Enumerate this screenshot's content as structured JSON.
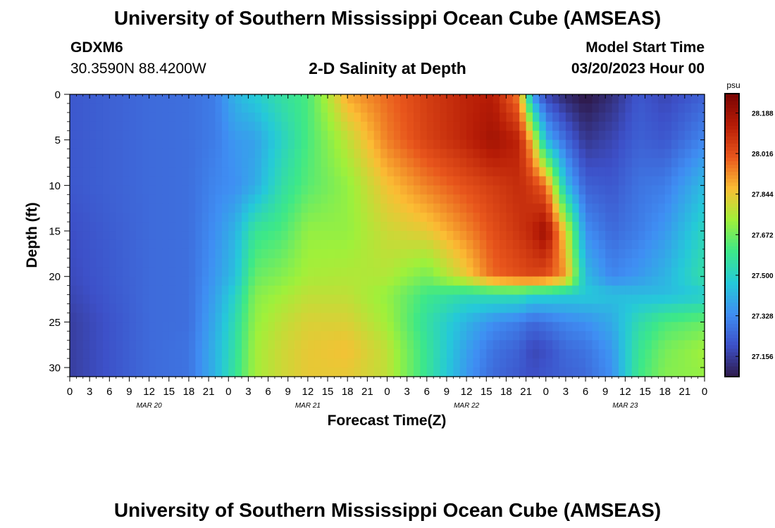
{
  "header": {
    "title": "University of Southern Mississippi Ocean Cube (AMSEAS)",
    "station_id": "GDXM6",
    "station_coords": "30.3590N  88.4200W",
    "plot_title": "2-D Salinity at Depth",
    "model_start_label": "Model Start Time",
    "model_start_value": "03/20/2023 Hour 00"
  },
  "footer": {
    "title": "University of Southern Mississippi Ocean Cube (AMSEAS)"
  },
  "chart_data": {
    "type": "heatmap",
    "xlabel": "Forecast Time(Z)",
    "ylabel": "Depth (ft)",
    "x_unit": "hours",
    "x_range": [
      0,
      96
    ],
    "y_range": [
      0,
      31
    ],
    "y_reversed": true,
    "x_tick_step_hours": 3,
    "x_tick_labels": [
      "0",
      "3",
      "6",
      "9",
      "12",
      "15",
      "18",
      "21",
      "0",
      "3",
      "6",
      "9",
      "12",
      "15",
      "18",
      "21",
      "0",
      "3",
      "6",
      "9",
      "12",
      "15",
      "18",
      "21",
      "0",
      "3",
      "6",
      "9",
      "12",
      "15",
      "18",
      "21",
      "0"
    ],
    "date_labels": [
      {
        "label": "MAR 20",
        "hour": 12
      },
      {
        "label": "MAR 21",
        "hour": 36
      },
      {
        "label": "MAR 22",
        "hour": 60
      },
      {
        "label": "MAR 23",
        "hour": 84
      }
    ],
    "y_ticks": [
      0,
      5,
      10,
      15,
      20,
      25,
      30
    ],
    "colorbar": {
      "unit": "psu",
      "min": 27.07,
      "max": 28.27,
      "tick_values": [
        28.188,
        28.016,
        27.844,
        27.672,
        27.5,
        27.328,
        27.156
      ],
      "tick_labels": [
        "28.188",
        "28.016",
        "27.844",
        "27.672",
        "27.500",
        "27.328",
        "27.156"
      ]
    },
    "depths_ft": [
      0,
      5,
      10,
      15,
      20,
      22,
      25,
      28,
      31
    ],
    "salinity_keyframes": [
      {
        "hour": 0,
        "values": [
          27.22,
          27.22,
          27.22,
          27.2,
          27.19,
          27.18,
          27.16,
          27.16,
          27.16
        ]
      },
      {
        "hour": 12,
        "values": [
          27.26,
          27.26,
          27.26,
          27.26,
          27.26,
          27.26,
          27.26,
          27.26,
          27.26
        ]
      },
      {
        "hour": 18,
        "values": [
          27.27,
          27.27,
          27.27,
          27.27,
          27.27,
          27.27,
          27.27,
          27.28,
          27.28
        ]
      },
      {
        "hour": 22,
        "values": [
          27.3,
          27.3,
          27.32,
          27.34,
          27.36,
          27.38,
          27.4,
          27.42,
          27.42
        ]
      },
      {
        "hour": 25,
        "values": [
          27.42,
          27.36,
          27.34,
          27.42,
          27.45,
          27.5,
          27.54,
          27.56,
          27.58
        ]
      },
      {
        "hour": 28,
        "values": [
          27.48,
          27.38,
          27.4,
          27.58,
          27.66,
          27.7,
          27.72,
          27.74,
          27.74
        ]
      },
      {
        "hour": 32,
        "values": [
          27.56,
          27.5,
          27.55,
          27.62,
          27.7,
          27.74,
          27.78,
          27.8,
          27.8
        ]
      },
      {
        "hour": 36,
        "values": [
          27.62,
          27.62,
          27.64,
          27.72,
          27.75,
          27.78,
          27.82,
          27.84,
          27.84
        ]
      },
      {
        "hour": 42,
        "values": [
          27.9,
          27.78,
          27.72,
          27.72,
          27.76,
          27.78,
          27.82,
          27.86,
          27.84
        ]
      },
      {
        "hour": 48,
        "values": [
          27.98,
          27.95,
          27.86,
          27.8,
          27.76,
          27.72,
          27.74,
          27.78,
          27.78
        ]
      },
      {
        "hour": 54,
        "values": [
          28.06,
          28.05,
          27.95,
          27.84,
          27.68,
          27.6,
          27.56,
          27.58,
          27.58
        ]
      },
      {
        "hour": 60,
        "values": [
          28.12,
          28.12,
          28.02,
          27.94,
          27.84,
          27.54,
          27.42,
          27.38,
          27.36
        ]
      },
      {
        "hour": 64,
        "values": [
          28.14,
          28.18,
          28.06,
          28.02,
          27.98,
          27.55,
          27.34,
          27.28,
          27.26
        ]
      },
      {
        "hour": 68,
        "values": [
          27.94,
          28.12,
          28.1,
          28.08,
          28.02,
          27.55,
          27.3,
          27.24,
          27.22
        ]
      },
      {
        "hour": 70,
        "values": [
          27.34,
          27.86,
          28.06,
          28.12,
          28.04,
          27.5,
          27.26,
          27.18,
          27.2
        ]
      },
      {
        "hour": 72,
        "values": [
          27.18,
          27.42,
          27.98,
          28.2,
          28.02,
          27.5,
          27.28,
          27.2,
          27.22
        ]
      },
      {
        "hour": 75,
        "values": [
          27.1,
          27.26,
          27.44,
          27.82,
          27.92,
          27.48,
          27.32,
          27.26,
          27.24
        ]
      },
      {
        "hour": 78,
        "values": [
          27.06,
          27.14,
          27.24,
          27.34,
          27.44,
          27.48,
          27.34,
          27.28,
          27.26
        ]
      },
      {
        "hour": 82,
        "values": [
          27.12,
          27.18,
          27.22,
          27.26,
          27.32,
          27.45,
          27.4,
          27.36,
          27.34
        ]
      },
      {
        "hour": 86,
        "values": [
          27.22,
          27.24,
          27.28,
          27.3,
          27.36,
          27.44,
          27.54,
          27.58,
          27.6
        ]
      },
      {
        "hour": 90,
        "values": [
          27.18,
          27.22,
          27.3,
          27.36,
          27.42,
          27.44,
          27.62,
          27.68,
          27.7
        ]
      },
      {
        "hour": 96,
        "values": [
          27.24,
          27.32,
          27.44,
          27.52,
          27.56,
          27.48,
          27.66,
          27.74,
          27.72
        ]
      }
    ],
    "colors": {
      "palette": [
        "#2e1a4a",
        "#3d50c8",
        "#3f8ef3",
        "#25c9d9",
        "#3de888",
        "#a0f03a",
        "#fbbd34",
        "#e8561c",
        "#b61c06",
        "#7a0403"
      ]
    }
  }
}
